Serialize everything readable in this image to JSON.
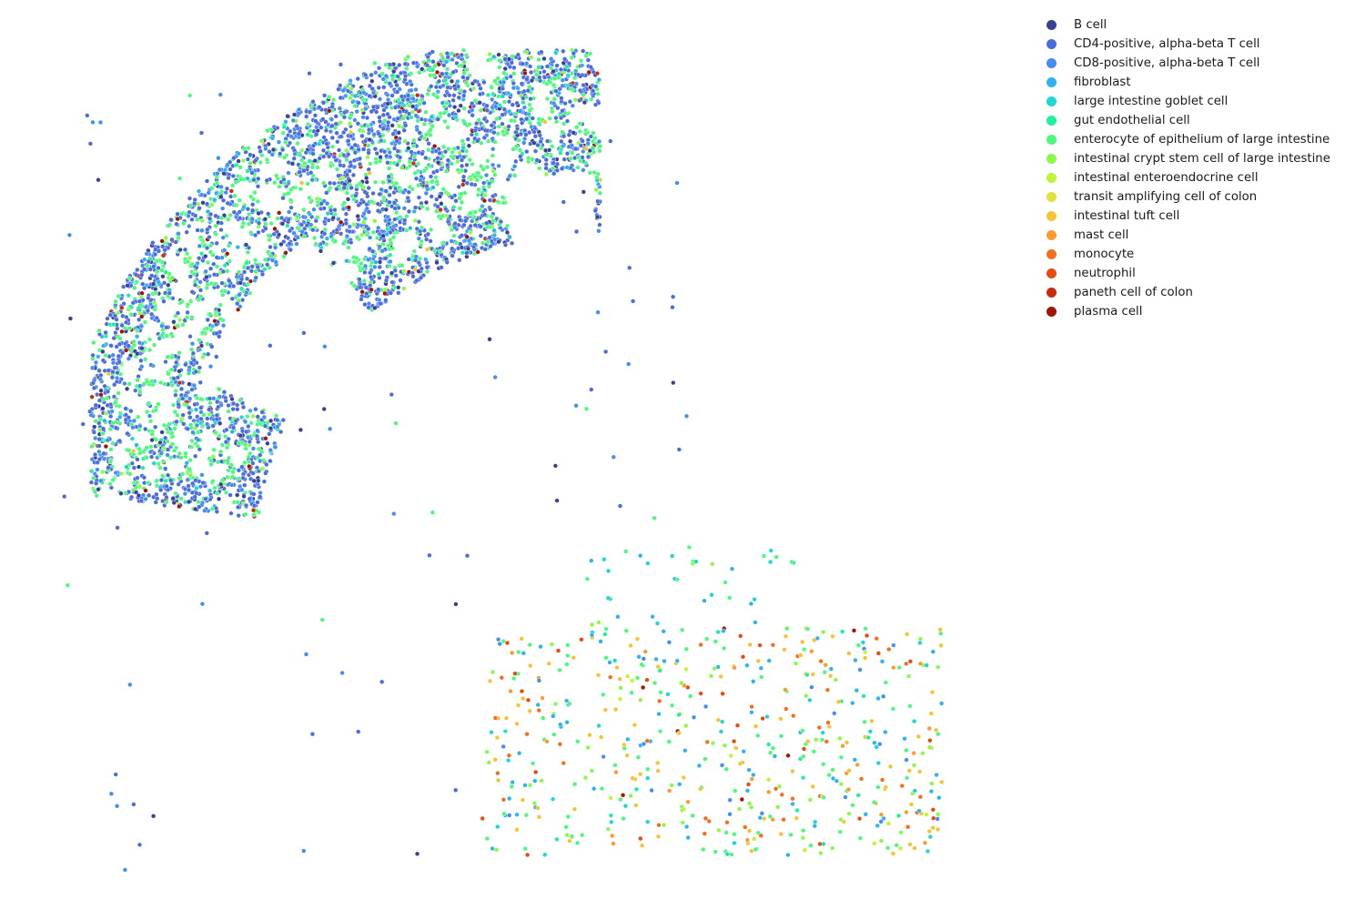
{
  "chart_data": {
    "type": "scatter",
    "title": "",
    "xlabel": "",
    "ylabel": "",
    "axes_visible": false,
    "grid": false,
    "legend_position": "top-right",
    "series": [
      {
        "name": "B cell",
        "color": "#3a3f98"
      },
      {
        "name": "CD4-positive, alpha-beta T cell",
        "color": "#4a6cdf"
      },
      {
        "name": "CD8-positive, alpha-beta T cell",
        "color": "#438df5"
      },
      {
        "name": "fibroblast",
        "color": "#2db4f0"
      },
      {
        "name": "large intestine goblet cell",
        "color": "#1dd8d0"
      },
      {
        "name": "gut endothelial cell",
        "color": "#20efa0"
      },
      {
        "name": "enterocyte of epithelium of large intestine",
        "color": "#4cfa7a"
      },
      {
        "name": "intestinal crypt stem cell of large intestine",
        "color": "#88fb48"
      },
      {
        "name": "intestinal enteroendocrine cell",
        "color": "#bff532"
      },
      {
        "name": "transit amplifying cell of colon",
        "color": "#e1e138"
      },
      {
        "name": "intestinal tuft cell",
        "color": "#f7c233"
      },
      {
        "name": "mast cell",
        "color": "#fb9a2e"
      },
      {
        "name": "monocyte",
        "color": "#f56e1d"
      },
      {
        "name": "neutrophil",
        "color": "#e84a0e"
      },
      {
        "name": "paneth cell of colon",
        "color": "#c92c06"
      },
      {
        "name": "plasma cell",
        "color": "#a01403"
      }
    ]
  }
}
